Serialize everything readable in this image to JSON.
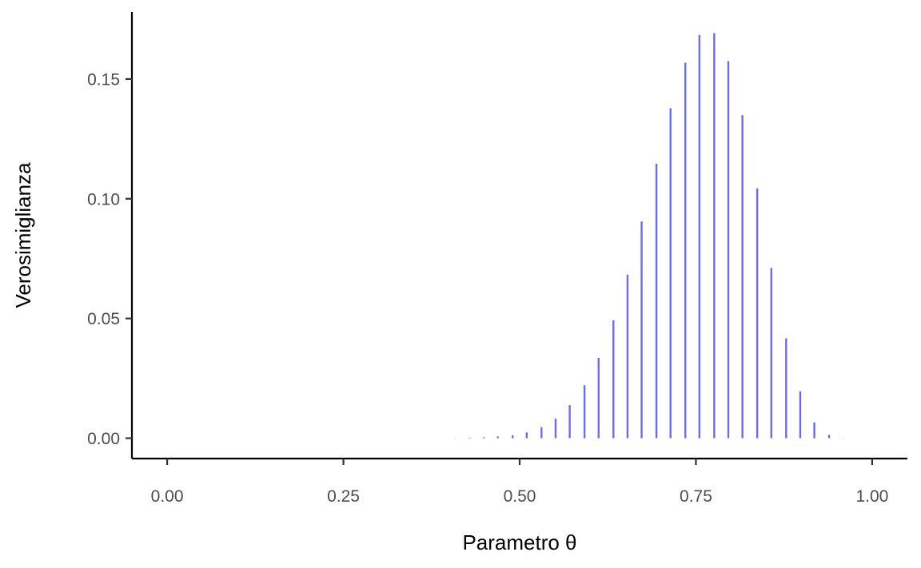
{
  "chart_data": {
    "type": "bar",
    "title": "",
    "xlabel": "Parametro θ",
    "ylabel": "Verosimiglianza",
    "xlim": [
      -0.05,
      1.05
    ],
    "ylim": [
      -0.0085,
      0.178
    ],
    "x_ticks": [
      0,
      0.25,
      0.5,
      0.75,
      1
    ],
    "x_tick_labels": [
      "0.00",
      "0.25",
      "0.50",
      "0.75",
      "1.00"
    ],
    "y_ticks": [
      0,
      0.05,
      0.1,
      0.15
    ],
    "y_tick_labels": [
      "0.00",
      "0.05",
      "0.10",
      "0.15"
    ],
    "grid": false,
    "legend": "none",
    "colors": {
      "bar": "#6b6bef",
      "axis": "#000000",
      "tick_label": "#4d4d4d"
    },
    "x": [
      0.408,
      0.429,
      0.449,
      0.469,
      0.49,
      0.51,
      0.531,
      0.551,
      0.571,
      0.592,
      0.612,
      0.633,
      0.653,
      0.673,
      0.694,
      0.714,
      0.735,
      0.755,
      0.776,
      0.796,
      0.816,
      0.837,
      0.857,
      0.878,
      0.898,
      0.918,
      0.939,
      0.959
    ],
    "values": [
      0.0001,
      0.0002,
      0.0004,
      0.0007,
      0.0012,
      0.0024,
      0.0046,
      0.0082,
      0.0138,
      0.0221,
      0.0336,
      0.0492,
      0.0683,
      0.0905,
      0.1146,
      0.1378,
      0.1568,
      0.1684,
      0.1692,
      0.1575,
      0.1349,
      0.1043,
      0.0711,
      0.0417,
      0.0196,
      0.0066,
      0.0014,
      0.0001
    ]
  }
}
